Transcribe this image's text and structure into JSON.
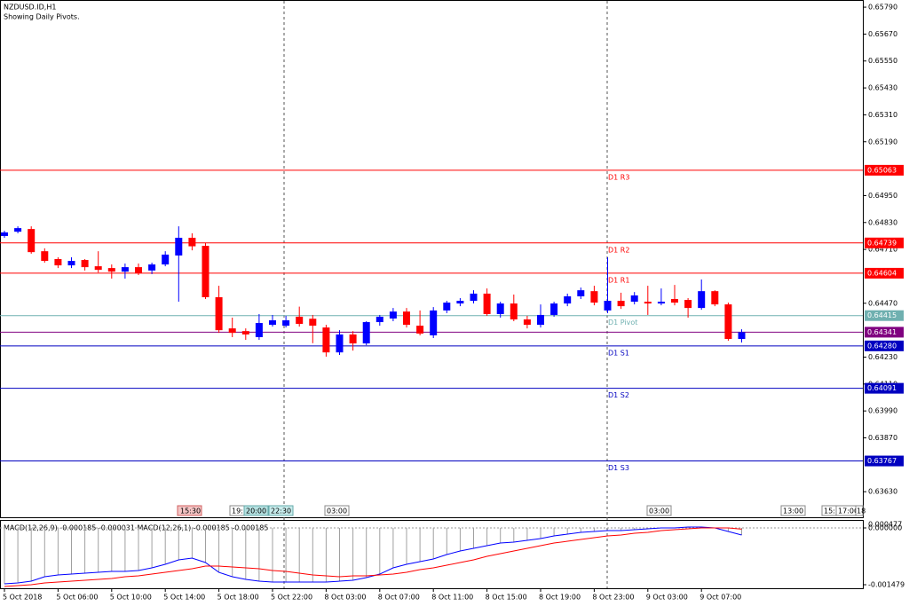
{
  "chart_data": [
    {
      "type": "candlestick",
      "title": "NZDUSD.ID,H1",
      "subtitle": "Showing Daily Pivots.",
      "categories": [
        "5 Oct 2018",
        null,
        null,
        null,
        "5 Oct 06:00",
        null,
        null,
        null,
        "5 Oct 10:00",
        null,
        null,
        null,
        "5 Oct 14:00",
        null,
        null,
        null,
        "5 Oct 18:00",
        null,
        null,
        null,
        "5 Oct 22:00",
        null,
        null,
        null,
        "8 Oct 03:00",
        null,
        null,
        null,
        "8 Oct 07:00",
        null,
        null,
        null,
        "8 Oct 11:00",
        null,
        null,
        null,
        "8 Oct 15:00",
        null,
        null,
        null,
        "8 Oct 19:00",
        null,
        null,
        null,
        "8 Oct 23:00",
        null,
        null,
        null,
        "9 Oct 03:00",
        null,
        null,
        null,
        "9 Oct 07:00",
        null,
        null,
        null
      ],
      "open": [
        0.6477,
        0.64789,
        0.64801,
        0.64702,
        0.64667,
        0.64639,
        0.64663,
        0.64635,
        0.64627,
        0.64611,
        0.64631,
        0.64616,
        0.64643,
        0.64683,
        0.64762,
        0.64726,
        0.64497,
        0.64358,
        0.64346,
        0.64319,
        0.64374,
        0.6437,
        0.6441,
        0.64401,
        0.64362,
        0.64251,
        0.64331,
        0.64291,
        0.64386,
        0.64402,
        0.64433,
        0.6437,
        0.64327,
        0.64438,
        0.64469,
        0.64481,
        0.64513,
        0.64422,
        0.64469,
        0.64398,
        0.64374,
        0.64418,
        0.64469,
        0.64501,
        0.64524,
        0.64438,
        0.64481,
        0.64477,
        0.64477,
        0.64469,
        0.64489,
        0.64485,
        0.64449,
        0.64524,
        0.64465,
        0.64311
      ],
      "high": [
        0.64793,
        0.64813,
        0.64813,
        0.64715,
        0.64675,
        0.64675,
        0.64667,
        0.64702,
        0.64643,
        0.64647,
        0.64647,
        0.64651,
        0.64702,
        0.64813,
        0.64782,
        0.64738,
        0.64548,
        0.64406,
        0.64358,
        0.64422,
        0.64418,
        0.64414,
        0.64455,
        0.64418,
        0.64374,
        0.6435,
        0.64346,
        0.6439,
        0.64418,
        0.64449,
        0.64449,
        0.64438,
        0.64453,
        0.64481,
        0.64493,
        0.64528,
        0.64536,
        0.64477,
        0.64509,
        0.64414,
        0.64465,
        0.64477,
        0.64513,
        0.6454,
        0.64548,
        0.64675,
        0.64517,
        0.6452,
        0.64548,
        0.64536,
        0.64552,
        0.64493,
        0.64576,
        0.64528,
        0.64473,
        0.64354
      ],
      "low": [
        0.64762,
        0.64782,
        0.64691,
        0.64651,
        0.64627,
        0.64627,
        0.64616,
        0.64607,
        0.6458,
        0.6458,
        0.64596,
        0.646,
        0.64635,
        0.64477,
        0.64706,
        0.64489,
        0.64338,
        0.64319,
        0.64307,
        0.64307,
        0.64366,
        0.64362,
        0.64366,
        0.64292,
        0.64232,
        0.6424,
        0.64259,
        0.64283,
        0.6437,
        0.6439,
        0.64362,
        0.64327,
        0.64315,
        0.64426,
        0.64457,
        0.64469,
        0.64414,
        0.64406,
        0.6439,
        0.64358,
        0.64362,
        0.6441,
        0.64457,
        0.64489,
        0.64461,
        0.64426,
        0.64445,
        0.64465,
        0.64418,
        0.64461,
        0.64461,
        0.64406,
        0.64441,
        0.64457,
        0.64303,
        0.64295
      ],
      "close": [
        0.64786,
        0.64805,
        0.64698,
        0.64659,
        0.64639,
        0.64659,
        0.64631,
        0.64619,
        0.64611,
        0.64631,
        0.64604,
        0.64643,
        0.64687,
        0.64762,
        0.64724,
        0.64497,
        0.6435,
        0.64338,
        0.64331,
        0.64382,
        0.64394,
        0.64394,
        0.64378,
        0.6437,
        0.64251,
        0.64331,
        0.64291,
        0.64386,
        0.6441,
        0.64433,
        0.64374,
        0.64335,
        0.64438,
        0.64473,
        0.64481,
        0.64513,
        0.64422,
        0.64469,
        0.64398,
        0.64374,
        0.64418,
        0.64469,
        0.64501,
        0.64528,
        0.64473,
        0.64481,
        0.64457,
        0.64505,
        0.64469,
        0.64477,
        0.64473,
        0.64449,
        0.64524,
        0.64465,
        0.64311,
        0.64341
      ],
      "up_color": "#0000ff",
      "down_color": "#ff0000",
      "ylim": [
        0.63516,
        0.65814
      ],
      "yticks": [
        {
          "value": 0.6579,
          "label": "0.65790"
        },
        {
          "value": 0.6567,
          "label": "0.65670"
        },
        {
          "value": 0.6555,
          "label": "0.65550"
        },
        {
          "value": 0.6543,
          "label": "0.65430"
        },
        {
          "value": 0.6531,
          "label": "0.65310"
        },
        {
          "value": 0.6519,
          "label": "0.65190"
        },
        {
          "value": 0.6495,
          "label": "0.64950"
        },
        {
          "value": 0.6483,
          "label": "0.64830"
        },
        {
          "value": 0.6471,
          "label": "0.64710"
        },
        {
          "value": 0.6447,
          "label": "0.64470"
        },
        {
          "value": 0.6423,
          "label": "0.64230"
        },
        {
          "value": 0.6411,
          "label": "0.64110"
        },
        {
          "value": 0.6399,
          "label": "0.63990"
        },
        {
          "value": 0.6387,
          "label": "0.63870"
        },
        {
          "value": 0.6363,
          "label": "0.63630"
        }
      ],
      "levels": [
        {
          "label": "D1 R3",
          "value": 0.65063,
          "color": "#ff0000"
        },
        {
          "label": "D1 R2",
          "value": 0.64739,
          "color": "#ff0000"
        },
        {
          "label": "D1 R1",
          "value": 0.64604,
          "color": "#ff0000"
        },
        {
          "label": "D1 Pivot",
          "value": 0.64415,
          "color": "#6fb0b0"
        },
        {
          "value": 0.64341,
          "color": "#800080"
        },
        {
          "label": "D1 S1",
          "value": 0.6428,
          "value_label": "0.64280",
          "color": "#0000c0"
        },
        {
          "label": "D1 S2",
          "value": 0.64091,
          "color": "#0000c0"
        },
        {
          "label": "D1 S3",
          "value": 0.63767,
          "color": "#0000c0"
        }
      ],
      "time_labels": [
        "15:30",
        "19:",
        "20:00",
        "22:30",
        "03:00",
        "03:00",
        "13:00",
        "15:",
        "17:00",
        "18"
      ]
    },
    {
      "type": "line",
      "label": "MACD(12,26,9) -0.000185 -0.000031 MACD(12,26,1) -0.000185 -0.000185",
      "max_label": "0.000477",
      "ylim": [
        -0.001571,
        0.000185
      ],
      "yticks": [
        {
          "value": 0,
          "label": "0.000000"
        },
        {
          "value": -0.001479,
          "label": "-0.001479"
        }
      ],
      "histogram_color": "#a0a0a0",
      "series": [
        {
          "color": "#0000ff",
          "values": [
            -0.001456,
            -0.001433,
            -0.001387,
            -0.001271,
            -0.001225,
            -0.001202,
            -0.001179,
            -0.001156,
            -0.001132,
            -0.001132,
            -0.001109,
            -0.00104,
            -0.000948,
            -0.000832,
            -0.000786,
            -0.000901,
            -0.001156,
            -0.001271,
            -0.00134,
            -0.001387,
            -0.00141,
            -0.00141,
            -0.00141,
            -0.00141,
            -0.00141,
            -0.001387,
            -0.001363,
            -0.001294,
            -0.001202,
            -0.00104,
            -0.000948,
            -0.000878,
            -0.000809,
            -0.000693,
            -0.000601,
            -0.000532,
            -0.000462,
            -0.000393,
            -0.00037,
            -0.000324,
            -0.000277,
            -0.000208,
            -0.000162,
            -0.000116,
            -9.2e-05,
            -6.9e-05,
            -6.9e-05,
            -4.6e-05,
            -2.3e-05,
            0,
            0,
            2.3e-05,
            2.3e-05,
            0,
            -9.2e-05,
            -0.000185
          ]
        },
        {
          "color": "#ff0000",
          "values": [
            -0.001525,
            -0.001502,
            -0.001479,
            -0.001433,
            -0.00141,
            -0.001387,
            -0.001363,
            -0.00134,
            -0.001317,
            -0.001271,
            -0.001248,
            -0.001202,
            -0.001156,
            -0.001109,
            -0.001063,
            -0.000994,
            -0.000994,
            -0.001017,
            -0.00104,
            -0.001063,
            -0.001109,
            -0.001132,
            -0.001179,
            -0.001225,
            -0.001248,
            -0.001271,
            -0.001248,
            -0.001248,
            -0.001225,
            -0.001202,
            -0.001156,
            -0.001086,
            -0.00104,
            -0.000971,
            -0.000901,
            -0.000832,
            -0.00074,
            -0.00067,
            -0.000601,
            -0.000532,
            -0.000462,
            -0.000393,
            -0.000347,
            -0.0003,
            -0.000254,
            -0.000208,
            -0.000185,
            -0.000139,
            -0.000116,
            -6.9e-05,
            -4.6e-05,
            -2.3e-05,
            0,
            0,
            0,
            -3.1e-05
          ]
        }
      ]
    }
  ]
}
